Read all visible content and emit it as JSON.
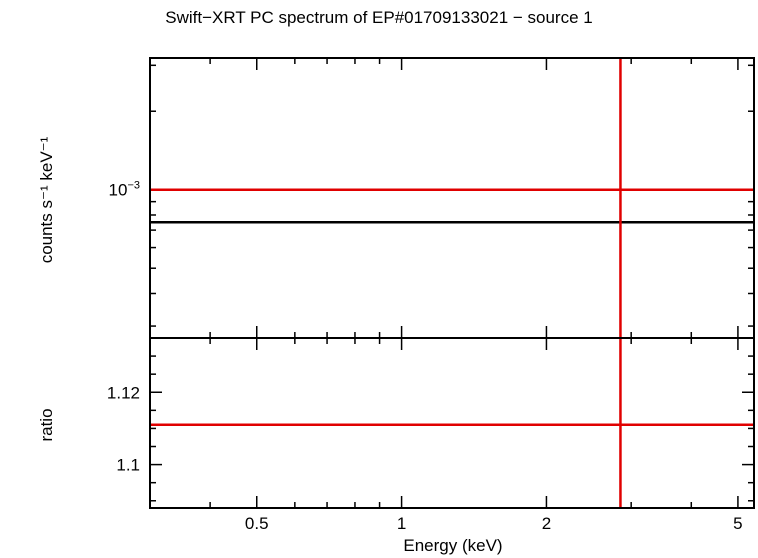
{
  "chart_data": [
    {
      "type": "line",
      "title": "Swift−XRT PC spectrum of EP#01709133021 − source 1",
      "xlabel": "",
      "ylabel": "counts s⁻¹ keV⁻¹",
      "xscale": "log",
      "yscale": "log",
      "xlim": [
        0.3,
        5.4
      ],
      "ylim": [
        0.00027,
        0.0032
      ],
      "yticks": [
        {
          "value": 0.001,
          "label": "10⁻³"
        }
      ],
      "series": [
        {
          "color": "#000000",
          "x": [
            0.3,
            5.4
          ],
          "y": [
            0.00075,
            0.00075
          ]
        },
        {
          "color": "#e00000",
          "x": [
            0.3,
            5.4
          ],
          "y": [
            0.001,
            0.001
          ]
        }
      ],
      "vlines": [
        {
          "x": 2.85,
          "color": "#e00000"
        }
      ],
      "grid": false
    },
    {
      "type": "line",
      "xlabel": "Energy (keV)",
      "ylabel": "ratio",
      "xscale": "log",
      "yscale": "linear",
      "xlim": [
        0.3,
        5.4
      ],
      "ylim": [
        1.088,
        1.135
      ],
      "xticks": [
        {
          "value": 0.5,
          "label": "0.5"
        },
        {
          "value": 1,
          "label": "1"
        },
        {
          "value": 2,
          "label": "2"
        },
        {
          "value": 5,
          "label": "5"
        }
      ],
      "yticks": [
        {
          "value": 1.1,
          "label": "1.1"
        },
        {
          "value": 1.12,
          "label": "1.12"
        }
      ],
      "series": [
        {
          "color": "#e00000",
          "x": [
            0.3,
            5.4
          ],
          "y": [
            1.111,
            1.111
          ]
        }
      ],
      "vlines": [
        {
          "x": 2.85,
          "color": "#e00000"
        }
      ],
      "grid": false
    }
  ]
}
